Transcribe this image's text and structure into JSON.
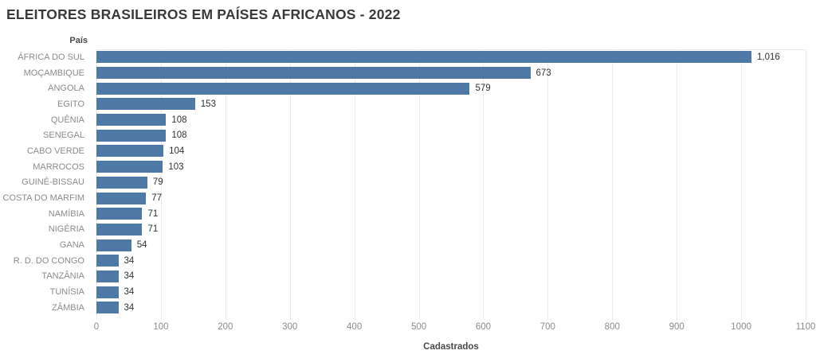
{
  "title": "ELEITORES BRASILEIROS EM PAÍSES AFRICANOS - 2022",
  "chart_data": {
    "type": "bar",
    "orientation": "horizontal",
    "title": "ELEITORES BRASILEIROS EM PAÍSES AFRICANOS - 2022",
    "column_header": "País",
    "xlabel": "Cadastrados",
    "ylabel": "País",
    "categories": [
      "ÁFRICA DO SUL",
      "MOÇAMBIQUE",
      "ANGOLA",
      "EGITO",
      "QUÊNIA",
      "SENEGAL",
      "CABO VERDE",
      "MARROCOS",
      "GUINÉ-BISSAU",
      "COSTA DO MARFIM",
      "NAMÍBIA",
      "NIGÉRIA",
      "GANA",
      "R. D. DO CONGO",
      "TANZÂNIA",
      "TUNÍSIA",
      "ZÂMBIA"
    ],
    "values": [
      1016,
      673,
      579,
      153,
      108,
      108,
      104,
      103,
      79,
      77,
      71,
      71,
      54,
      34,
      34,
      34,
      34
    ],
    "value_labels": [
      "1,016",
      "673",
      "579",
      "153",
      "108",
      "108",
      "104",
      "103",
      "79",
      "77",
      "71",
      "71",
      "54",
      "34",
      "34",
      "34",
      "34"
    ],
    "xlim": [
      0,
      1100
    ],
    "xticks": [
      0,
      100,
      200,
      300,
      400,
      500,
      600,
      700,
      800,
      900,
      1000,
      1100
    ],
    "grid": true,
    "legend_position": "none",
    "bar_color": "#4e79a7",
    "gridline_color": "#ebebeb"
  }
}
